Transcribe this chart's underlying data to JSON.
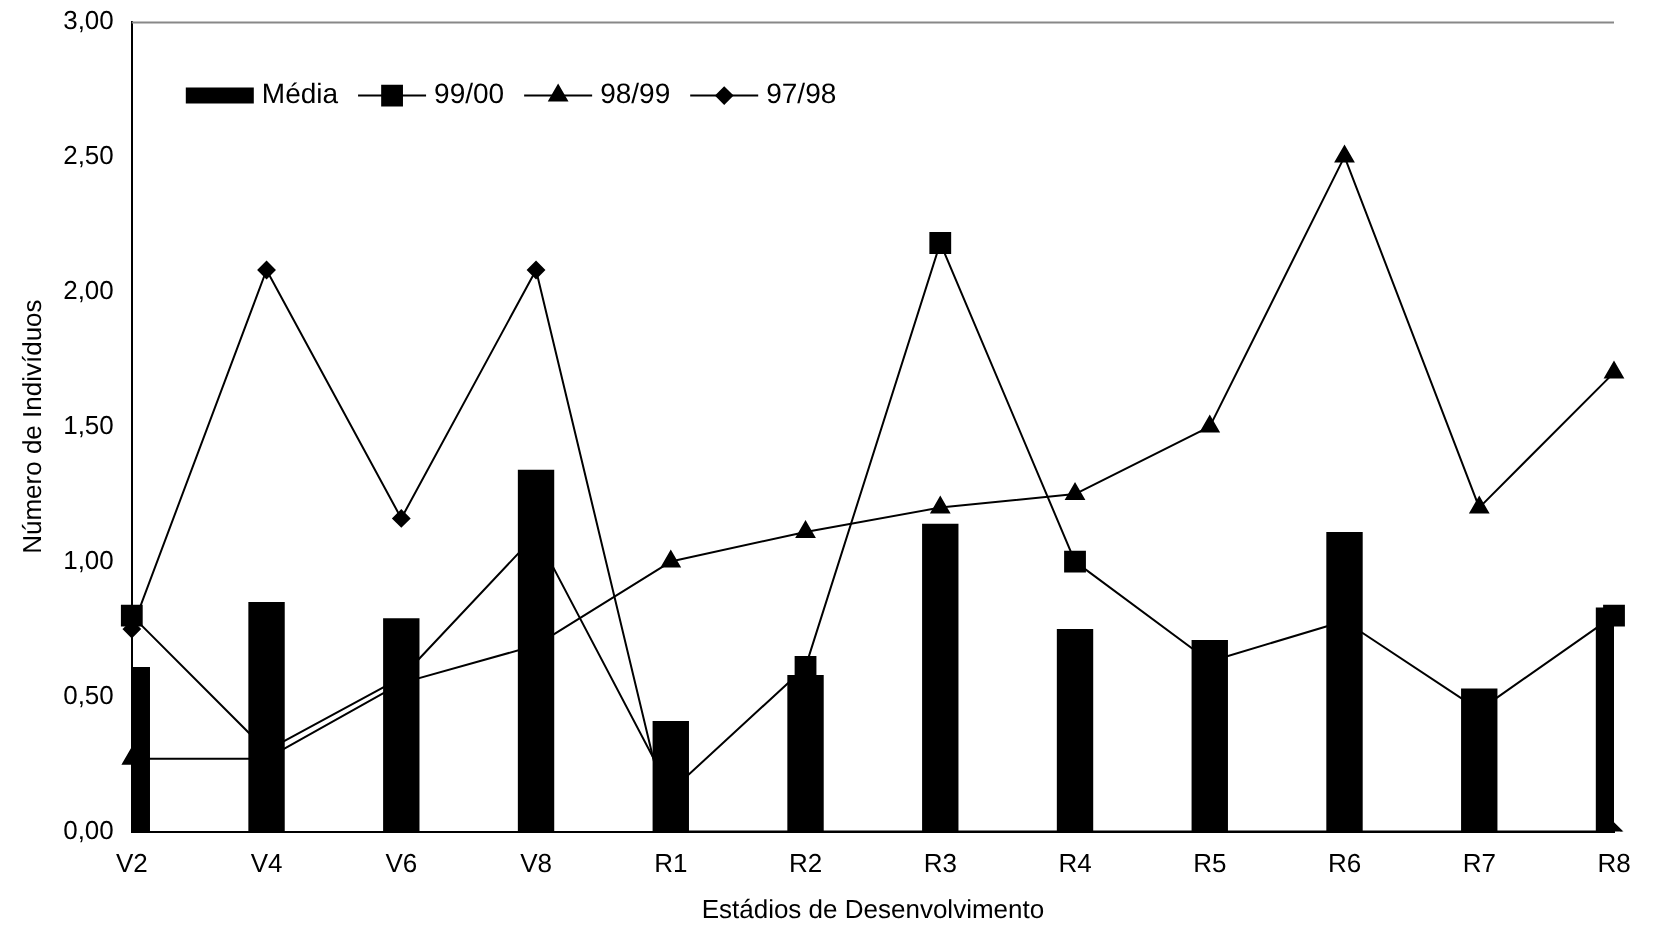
{
  "chart_data": {
    "type": "bar",
    "xlabel": "Estádios de Desenvolvimento",
    "ylabel": "Número de Indivíduos",
    "categories": [
      "V2",
      "V4",
      "V6",
      "V8",
      "R1",
      "R2",
      "R3",
      "R4",
      "R5",
      "R6",
      "R7",
      "R8"
    ],
    "series": [
      {
        "name": "Média",
        "color": "#000000",
        "values": [
          0.61,
          0.85,
          0.79,
          1.34,
          0.41,
          0.58,
          1.14,
          0.75,
          0.71,
          1.11,
          0.53,
          0.83
        ]
      },
      {
        "name": "99/00",
        "type": "line",
        "marker": "square",
        "color": "#000000",
        "values": [
          0.8,
          0.3,
          0.57,
          1.1,
          0.15,
          0.61,
          2.18,
          1.0,
          0.63,
          0.78,
          0.45,
          0.8
        ]
      },
      {
        "name": "98/99",
        "type": "line",
        "marker": "triangle",
        "color": "#000000",
        "values": [
          0.27,
          0.27,
          0.55,
          0.69,
          1.0,
          1.11,
          1.2,
          1.25,
          1.5,
          2.5,
          1.2,
          1.7
        ]
      },
      {
        "name": "97/98",
        "type": "line",
        "marker": "diamond",
        "color": "#000000",
        "values": [
          0.75,
          2.08,
          1.16,
          2.08,
          0,
          0,
          0,
          0,
          0,
          0,
          0,
          0
        ]
      }
    ],
    "ylim": [
      0,
      3
    ],
    "yticks": [
      {
        "value": 0,
        "label": "0,00"
      },
      {
        "value": 0.5,
        "label": "0,50"
      },
      {
        "value": 1,
        "label": "1,00"
      },
      {
        "value": 1.5,
        "label": "1,50"
      },
      {
        "value": 2,
        "label": "2,00"
      },
      {
        "value": 2.5,
        "label": "2,50"
      },
      {
        "value": 3,
        "label": "3,00"
      }
    ],
    "grid": false,
    "legend": "top left"
  }
}
